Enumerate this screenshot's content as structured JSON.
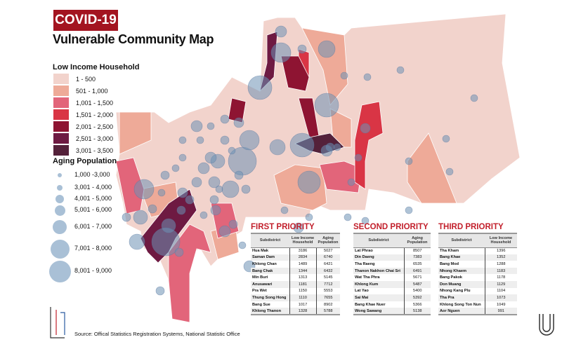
{
  "header": {
    "badge": "COVID-19",
    "title": "Vulnerable Community Map"
  },
  "legend_income": {
    "title": "Low Income Household",
    "items": [
      {
        "label": "1 - 500",
        "color": "#f2d3cc"
      },
      {
        "label": "501 - 1,000",
        "color": "#eeaa98"
      },
      {
        "label": "1,001 - 1,500",
        "color": "#e2657a"
      },
      {
        "label": "1,501 - 2,000",
        "color": "#d93545"
      },
      {
        "label": "2,001 - 2,500",
        "color": "#8e1432"
      },
      {
        "label": "2,501 - 3,000",
        "color": "#6e1a42"
      },
      {
        "label": "3,001 - 3,500",
        "color": "#54213a"
      }
    ]
  },
  "legend_aging": {
    "title": "Aging Population",
    "items": [
      "1,000 -3,000",
      "3,001 - 4,000",
      "4,001 - 5,000",
      "5,001 - 6,000",
      "6,001 - 7,000",
      "7,001 - 8,000",
      "8,001 - 9,000"
    ]
  },
  "tables": [
    {
      "title": "FIRST PRIORITY",
      "headers": [
        "Subdistrict",
        "Low Income Household",
        "Aging Population"
      ],
      "rows": [
        [
          "Hua Mak",
          "3186",
          "5027"
        ],
        [
          "Saman Dam",
          "2834",
          "6740"
        ],
        [
          "Khlong Chan",
          "1489",
          "6421"
        ],
        [
          "Bang Chak",
          "1344",
          "6432"
        ],
        [
          "Min Buri",
          "1313",
          "5145"
        ],
        [
          "Anusawari",
          "1181",
          "7712"
        ],
        [
          "Pra Wet",
          "1150",
          "5553"
        ],
        [
          "Thung Song Hong",
          "1110",
          "7655"
        ],
        [
          "Bang Sue",
          "1017",
          "8902"
        ],
        [
          "Khlong Thanon",
          "1328",
          "5788"
        ]
      ]
    },
    {
      "title": "SECOND PRIORITY",
      "headers": [
        "Subdistrict",
        "Aging Population"
      ],
      "rows": [
        [
          "Lat Phrao",
          "8507"
        ],
        [
          "Din Daeng",
          "7383"
        ],
        [
          "Tha Raeng",
          "6535"
        ],
        [
          "Thanon Nakhon Chai Sri",
          "6491"
        ],
        [
          "Wat Tha Phra",
          "5671"
        ],
        [
          "Khlong Kum",
          "5487"
        ],
        [
          "Lat Yao",
          "5400"
        ],
        [
          "Sai Mai",
          "5392"
        ],
        [
          "Bang Khae Nuer",
          "5366"
        ],
        [
          "Wong Sawang",
          "5138"
        ]
      ]
    },
    {
      "title": "THIRD PRIORITY",
      "headers": [
        "Subdistrict",
        "Low Income Household"
      ],
      "rows": [
        [
          "Tha Kham",
          "1396"
        ],
        [
          "Bang Khae",
          "1352"
        ],
        [
          "Bang Mod",
          "1288"
        ],
        [
          "Nhong Khaem",
          "1183"
        ],
        [
          "Bang Pakok",
          "1178"
        ],
        [
          "Don Muang",
          "1129"
        ],
        [
          "Nhong Kang Plu",
          "1104"
        ],
        [
          "Tha Pra",
          "1073"
        ],
        [
          "Khlong Song Ton Nun",
          "1049"
        ],
        [
          "Aor Nguen",
          "991"
        ]
      ]
    }
  ],
  "footer": {
    "source": "Source: Offical Statistics Registration Systems, National Statistic Office"
  }
}
